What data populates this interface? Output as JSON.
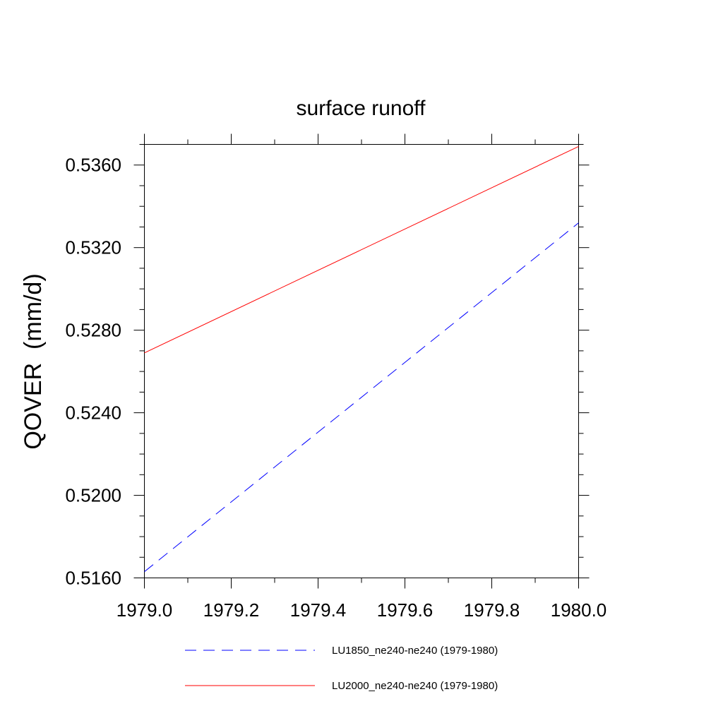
{
  "chart_data": {
    "type": "line",
    "title": "surface runoff",
    "xlabel": "",
    "ylabel": "QOVER  (mm/d)",
    "xlim": [
      1979.0,
      1980.0
    ],
    "ylim": [
      0.516,
      0.537
    ],
    "xticks": [
      1979.0,
      1979.2,
      1979.4,
      1979.6,
      1979.8,
      1980.0
    ],
    "xtick_labels": [
      "1979.0",
      "1979.2",
      "1979.4",
      "1979.6",
      "1979.8",
      "1980.0"
    ],
    "yticks": [
      0.516,
      0.52,
      0.524,
      0.528,
      0.532,
      0.536
    ],
    "ytick_labels": [
      "0.5160",
      "0.5200",
      "0.5240",
      "0.5280",
      "0.5320",
      "0.5360"
    ],
    "x_minor_step": 0.1,
    "y_minor_step": 0.001,
    "grid": false,
    "legend_position": "bottom",
    "series": [
      {
        "name": "LU1850_ne240-ne240 (1979-1980)",
        "color": "#0000ff",
        "dash": "dashed",
        "x": [
          1979.0,
          1980.0
        ],
        "y": [
          0.5163,
          0.5332
        ]
      },
      {
        "name": "LU2000_ne240-ne240 (1979-1980)",
        "color": "#ff0000",
        "dash": "solid",
        "x": [
          1979.0,
          1980.0
        ],
        "y": [
          0.5269,
          0.5369
        ]
      }
    ]
  }
}
